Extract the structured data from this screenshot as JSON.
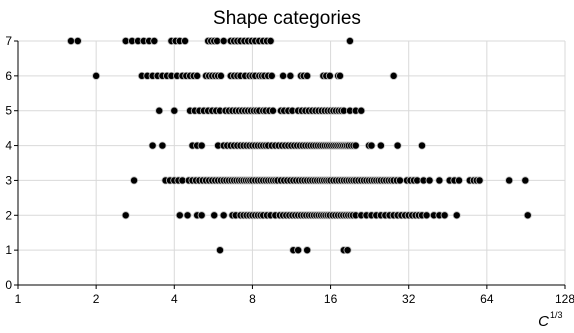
{
  "chart_data": {
    "type": "scatter",
    "title": "Shape categories",
    "xlabel": "C",
    "xlabel_superscript": "1/3",
    "ylabel": "",
    "x_scale": "log2",
    "xlim": [
      1,
      128
    ],
    "ylim": [
      0,
      7
    ],
    "x_ticks": [
      "1",
      "2",
      "4",
      "8",
      "16",
      "32",
      "64",
      "128"
    ],
    "y_ticks": [
      "0",
      "1",
      "2",
      "3",
      "4",
      "5",
      "6",
      "7"
    ],
    "grid": true,
    "legend": "none",
    "marker_color": "#000000",
    "series": [
      {
        "category": 7,
        "x": [
          1.6,
          1.7,
          2.6,
          2.75,
          2.9,
          3.05,
          3.2,
          3.35,
          3.9,
          4.05,
          4.2,
          4.4,
          5.4,
          5.55,
          5.7,
          5.85,
          6.2,
          6.6,
          6.8,
          7.0,
          7.2,
          7.45,
          7.7,
          7.95,
          8.2,
          8.5,
          8.8,
          9.1,
          9.4,
          19.0
        ]
      },
      {
        "category": 6,
        "x": [
          2.0,
          3.0,
          3.15,
          3.3,
          3.45,
          3.6,
          3.75,
          3.9,
          4.1,
          4.3,
          4.45,
          4.6,
          4.75,
          4.9,
          5.3,
          5.45,
          5.6,
          5.75,
          5.9,
          6.05,
          6.6,
          6.8,
          7.0,
          7.2,
          7.5,
          7.8,
          8.0,
          8.2,
          8.5,
          8.7,
          8.9,
          9.2,
          9.5,
          10.5,
          11.2,
          12.3,
          12.6,
          13.0,
          15.0,
          15.4,
          15.9,
          17.1,
          17.4,
          28.0
        ]
      },
      {
        "category": 5,
        "x": [
          3.5,
          4.0,
          4.6,
          4.8,
          5.0,
          5.2,
          5.4,
          5.6,
          5.8,
          6.0,
          6.3,
          6.5,
          6.7,
          6.9,
          7.1,
          7.3,
          7.5,
          7.7,
          7.9,
          8.1,
          8.3,
          8.5,
          8.8,
          9.0,
          9.3,
          9.6,
          10.3,
          10.6,
          11.0,
          11.4,
          12.0,
          12.4,
          12.8,
          13.2,
          13.6,
          14.0,
          14.4,
          14.8,
          15.2,
          15.6,
          16.0,
          16.4,
          16.8,
          17.2,
          17.6,
          18.0,
          19.0,
          20.0,
          21.0
        ]
      },
      {
        "category": 4,
        "x": [
          3.3,
          3.6,
          4.7,
          4.9,
          5.1,
          5.9,
          6.2,
          6.4,
          6.6,
          6.8,
          7.0,
          7.2,
          7.4,
          7.6,
          7.8,
          8.0,
          8.2,
          8.4,
          8.6,
          8.8,
          9.0,
          9.2,
          9.5,
          9.8,
          10.1,
          10.4,
          10.7,
          11.0,
          11.3,
          11.6,
          11.9,
          12.2,
          12.5,
          12.8,
          13.1,
          13.4,
          13.7,
          14.0,
          14.3,
          14.6,
          14.9,
          15.2,
          15.5,
          15.8,
          16.1,
          16.4,
          16.7,
          17.0,
          17.3,
          17.6,
          17.9,
          18.2,
          18.5,
          18.8,
          19.2,
          19.6,
          20.0,
          22.5,
          23.0,
          25.0,
          29.0,
          36.0
        ]
      },
      {
        "category": 3,
        "x": [
          2.8,
          3.7,
          3.85,
          4.0,
          4.15,
          4.3,
          4.55,
          4.7,
          4.85,
          5.0,
          5.15,
          5.3,
          5.45,
          5.6,
          5.75,
          5.9,
          6.05,
          6.2,
          6.35,
          6.5,
          6.65,
          6.8,
          6.95,
          7.1,
          7.25,
          7.4,
          7.55,
          7.7,
          7.85,
          8.0,
          8.2,
          8.4,
          8.6,
          8.8,
          9.0,
          9.2,
          9.4,
          9.6,
          9.8,
          10.0,
          10.3,
          10.6,
          10.9,
          11.2,
          11.5,
          11.8,
          12.1,
          12.4,
          12.7,
          13.0,
          13.3,
          13.6,
          13.9,
          14.2,
          14.5,
          14.8,
          15.1,
          15.4,
          15.7,
          16.0,
          16.4,
          16.8,
          17.2,
          17.6,
          18.0,
          18.4,
          18.8,
          19.2,
          19.6,
          20.0,
          20.5,
          21.0,
          21.5,
          22.0,
          22.5,
          23.0,
          23.5,
          24.0,
          24.5,
          25.0,
          25.6,
          26.2,
          26.8,
          27.4,
          28.0,
          28.8,
          29.6,
          31.5,
          32.5,
          33.5,
          34.5,
          36.5,
          38.5,
          42.0,
          46.0,
          48.0,
          50.0,
          55.0,
          57.0,
          58.5,
          60.0,
          78.0,
          90.0
        ]
      },
      {
        "category": 2,
        "x": [
          2.6,
          4.2,
          4.5,
          4.9,
          5.1,
          5.7,
          6.2,
          6.7,
          6.9,
          7.2,
          7.4,
          7.6,
          7.8,
          8.0,
          8.2,
          8.4,
          8.6,
          8.8,
          9.1,
          9.4,
          9.8,
          10.2,
          10.5,
          10.8,
          11.1,
          11.4,
          11.7,
          12.0,
          12.3,
          12.6,
          12.9,
          13.2,
          13.5,
          13.8,
          14.1,
          14.4,
          14.7,
          15.0,
          15.3,
          15.6,
          15.9,
          16.3,
          16.7,
          17.1,
          17.5,
          17.9,
          18.3,
          18.7,
          19.1,
          19.5,
          20.0,
          21.0,
          22.0,
          23.0,
          24.0,
          25.0,
          26.0,
          27.0,
          28.0,
          29.0,
          30.0,
          31.0,
          32.0,
          33.0,
          34.0,
          35.0,
          36.0,
          37.5,
          40.0,
          42.0,
          44.0,
          49.0,
          92.0
        ]
      },
      {
        "category": 1,
        "x": [
          6.0,
          11.5,
          12.0,
          13.0,
          18.0,
          18.6
        ]
      }
    ]
  }
}
